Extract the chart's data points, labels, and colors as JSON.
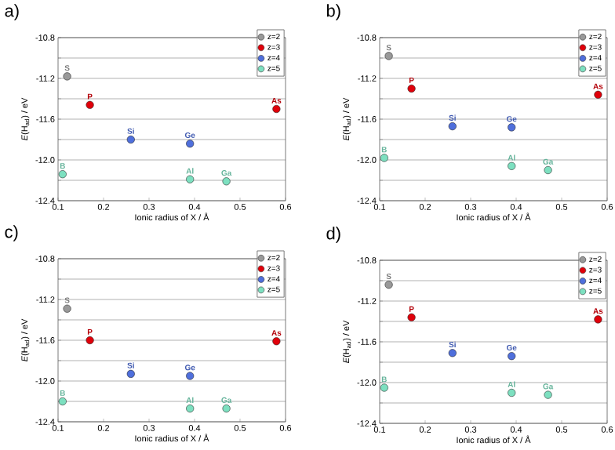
{
  "chart_data": [
    {
      "type": "scatter",
      "title": "a)",
      "xlabel": "Ionic radius of X / Å",
      "ylabel": "*E*(H$_{ad}$) / eV",
      "xlim": [
        0.1,
        0.6
      ],
      "ylim": [
        -12.4,
        -10.8
      ],
      "xticks": [
        0.1,
        0.2,
        0.3,
        0.4,
        0.5,
        0.6
      ],
      "yticks": [
        -12.4,
        {
          "value": -12.2,
          "label": null
        },
        {
          "value": -12,
          "label": "-12.0"
        },
        {
          "value": -11.8,
          "label": null
        },
        -11.6,
        {
          "value": -11.4,
          "label": null
        },
        -11.2,
        {
          "value": -11,
          "label": null
        },
        -10.8
      ],
      "grid": "y",
      "legend": "top right",
      "marker": "circle",
      "series": [
        {
          "name": "z=2",
          "color": "#999999",
          "x": [
            0.12
          ],
          "values": [
            -11.18
          ]
        },
        {
          "name": "z=3",
          "color": "#e0000a",
          "x": [
            0.17,
            0.58
          ],
          "values": [
            -11.46,
            -11.5
          ]
        },
        {
          "name": "z=4",
          "color": "#4f6fdc",
          "x": [
            0.26,
            0.39
          ],
          "values": [
            -11.8,
            -11.84
          ]
        },
        {
          "name": "z=5",
          "color": "#7de0c0",
          "x": [
            0.11,
            0.39,
            0.47
          ],
          "values": [
            -12.14,
            -12.19,
            -12.21
          ]
        }
      ],
      "annotations": [
        {
          "text": "S",
          "x": 0.12,
          "y": -11.18
        },
        {
          "text": "P",
          "x": 0.17,
          "y": -11.46
        },
        {
          "text": "As",
          "x": 0.58,
          "y": -11.5
        },
        {
          "text": "Si",
          "x": 0.26,
          "y": -11.8
        },
        {
          "text": "Ge",
          "x": 0.39,
          "y": -11.84
        },
        {
          "text": "B",
          "x": 0.11,
          "y": -12.14
        },
        {
          "text": "Al",
          "x": 0.39,
          "y": -12.19
        },
        {
          "text": "Ga",
          "x": 0.47,
          "y": -12.21
        }
      ]
    },
    {
      "type": "scatter",
      "title": "b)",
      "xlabel": "Ionic radius of X / Å",
      "ylabel": "*E*(H$_{ad}$) / eV",
      "xlim": [
        0.1,
        0.6
      ],
      "ylim": [
        -12.4,
        -10.8
      ],
      "xticks": [
        0.1,
        0.2,
        0.3,
        0.4,
        0.5,
        0.6
      ],
      "yticks": [
        -12.4,
        {
          "value": -12.2,
          "label": null
        },
        {
          "value": -12,
          "label": "-12.0"
        },
        {
          "value": -11.8,
          "label": null
        },
        -11.6,
        {
          "value": -11.4,
          "label": null
        },
        -11.2,
        {
          "value": -11,
          "label": null
        },
        -10.8
      ],
      "grid": "y",
      "legend": "top right",
      "marker": "circle",
      "series": [
        {
          "name": "z=2",
          "color": "#999999",
          "x": [
            0.12
          ],
          "values": [
            -10.98
          ]
        },
        {
          "name": "z=3",
          "color": "#e0000a",
          "x": [
            0.17,
            0.58
          ],
          "values": [
            -11.3,
            -11.36
          ]
        },
        {
          "name": "z=4",
          "color": "#4f6fdc",
          "x": [
            0.26,
            0.39
          ],
          "values": [
            -11.67,
            -11.68
          ]
        },
        {
          "name": "z=5",
          "color": "#7de0c0",
          "x": [
            0.11,
            0.39,
            0.47
          ],
          "values": [
            -11.98,
            -12.06,
            -12.1
          ]
        }
      ],
      "annotations": [
        {
          "text": "S",
          "x": 0.12,
          "y": -10.98
        },
        {
          "text": "P",
          "x": 0.17,
          "y": -11.3
        },
        {
          "text": "As",
          "x": 0.58,
          "y": -11.36
        },
        {
          "text": "Si",
          "x": 0.26,
          "y": -11.67
        },
        {
          "text": "Ge",
          "x": 0.39,
          "y": -11.68
        },
        {
          "text": "B",
          "x": 0.11,
          "y": -11.98
        },
        {
          "text": "Al",
          "x": 0.39,
          "y": -12.06
        },
        {
          "text": "Ga",
          "x": 0.47,
          "y": -12.1
        }
      ]
    },
    {
      "type": "scatter",
      "title": "c)",
      "xlabel": "Ionic radius of X / Å",
      "ylabel": "*E*(H$_{ad}$) / eV",
      "xlim": [
        0.1,
        0.6
      ],
      "ylim": [
        -12.4,
        -10.8
      ],
      "xticks": [
        0.1,
        0.2,
        0.3,
        0.4,
        0.5,
        0.6
      ],
      "yticks": [
        -12.4,
        {
          "value": -12.2,
          "label": null
        },
        {
          "value": -12,
          "label": "-12.0"
        },
        {
          "value": -11.8,
          "label": null
        },
        -11.6,
        {
          "value": -11.4,
          "label": null
        },
        -11.2,
        {
          "value": -11,
          "label": null
        },
        -10.8
      ],
      "grid": "y",
      "legend": "top right",
      "marker": "circle",
      "series": [
        {
          "name": "z=2",
          "color": "#999999",
          "x": [
            0.12
          ],
          "values": [
            -11.29
          ]
        },
        {
          "name": "z=3",
          "color": "#e0000a",
          "x": [
            0.17,
            0.58
          ],
          "values": [
            -11.6,
            -11.61
          ]
        },
        {
          "name": "z=4",
          "color": "#4f6fdc",
          "x": [
            0.26,
            0.39
          ],
          "values": [
            -11.93,
            -11.95
          ]
        },
        {
          "name": "z=5",
          "color": "#7de0c0",
          "x": [
            0.11,
            0.39,
            0.47
          ],
          "values": [
            -12.2,
            -12.27,
            -12.27
          ]
        }
      ],
      "annotations": [
        {
          "text": "S",
          "x": 0.12,
          "y": -11.29
        },
        {
          "text": "P",
          "x": 0.17,
          "y": -11.6
        },
        {
          "text": "As",
          "x": 0.58,
          "y": -11.61
        },
        {
          "text": "Si",
          "x": 0.26,
          "y": -11.93
        },
        {
          "text": "Ge",
          "x": 0.39,
          "y": -11.95
        },
        {
          "text": "B",
          "x": 0.11,
          "y": -12.2
        },
        {
          "text": "Al",
          "x": 0.39,
          "y": -12.27
        },
        {
          "text": "Ga",
          "x": 0.47,
          "y": -12.27
        }
      ]
    },
    {
      "type": "scatter",
      "title": "d)",
      "xlabel": "Ionic radius of X / Å",
      "ylabel": "*E*(H$_{ad}$) / eV",
      "xlim": [
        0.1,
        0.6
      ],
      "ylim": [
        -12.4,
        -10.8
      ],
      "xticks": [
        0.1,
        0.2,
        0.3,
        0.4,
        0.5,
        0.6
      ],
      "yticks": [
        -12.4,
        {
          "value": -12.2,
          "label": null
        },
        {
          "value": -12,
          "label": "-12.0"
        },
        {
          "value": -11.8,
          "label": null
        },
        -11.6,
        {
          "value": -11.4,
          "label": null
        },
        -11.2,
        {
          "value": -11,
          "label": null
        },
        -10.8
      ],
      "grid": "y",
      "legend": "top right",
      "marker": "circle",
      "series": [
        {
          "name": "z=2",
          "color": "#999999",
          "x": [
            0.12
          ],
          "values": [
            -11.04
          ]
        },
        {
          "name": "z=3",
          "color": "#e0000a",
          "x": [
            0.17,
            0.58
          ],
          "values": [
            -11.36,
            -11.38
          ]
        },
        {
          "name": "z=4",
          "color": "#4f6fdc",
          "x": [
            0.26,
            0.39
          ],
          "values": [
            -11.71,
            -11.74
          ]
        },
        {
          "name": "z=5",
          "color": "#7de0c0",
          "x": [
            0.11,
            0.39,
            0.47
          ],
          "values": [
            -12.05,
            -12.1,
            -12.12
          ]
        }
      ],
      "annotations": [
        {
          "text": "S",
          "x": 0.12,
          "y": -11.04
        },
        {
          "text": "P",
          "x": 0.17,
          "y": -11.36
        },
        {
          "text": "As",
          "x": 0.58,
          "y": -11.38
        },
        {
          "text": "Si",
          "x": 0.26,
          "y": -11.71
        },
        {
          "text": "Ge",
          "x": 0.39,
          "y": -11.74
        },
        {
          "text": "B",
          "x": 0.11,
          "y": -12.05
        },
        {
          "text": "Al",
          "x": 0.39,
          "y": -12.1
        },
        {
          "text": "Ga",
          "x": 0.47,
          "y": -12.12
        }
      ]
    }
  ]
}
